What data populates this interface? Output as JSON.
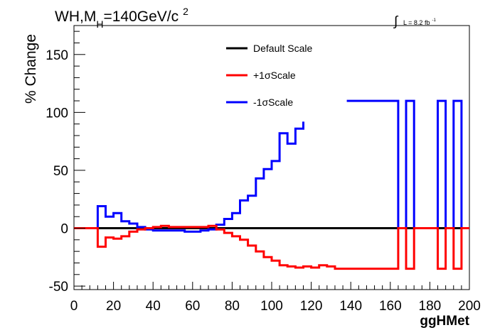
{
  "chart_data": {
    "type": "line",
    "title": {
      "process": "WH,M",
      "subscript": "H",
      "mass": "=140GeV/c",
      "superscript": "2"
    },
    "lumi": {
      "integral_symbol": "∫",
      "label": "L = 8.2 fb",
      "superscript": "-1"
    },
    "xlabel": "ggHMet",
    "ylabel": "% Change",
    "xlim": [
      0,
      200
    ],
    "ylim": [
      -53,
      175
    ],
    "x_ticks": [
      "0",
      "20",
      "40",
      "60",
      "80",
      "100",
      "120",
      "140",
      "160",
      "180",
      "200"
    ],
    "y_ticks": [
      "-50",
      "0",
      "50",
      "100",
      "150"
    ],
    "grid": false,
    "legend_position": "top-center",
    "bin_width": 4,
    "series": [
      {
        "name": "Default Scale",
        "color": "#000000",
        "points": [
          [
            0,
            0
          ],
          [
            200,
            0
          ]
        ]
      },
      {
        "name": "+1σScale",
        "color": "#ff0000",
        "points": [
          [
            0,
            0
          ],
          [
            12,
            0
          ],
          [
            12,
            -16
          ],
          [
            16,
            -16
          ],
          [
            16,
            -8
          ],
          [
            20,
            -8
          ],
          [
            20,
            -9
          ],
          [
            24,
            -9
          ],
          [
            24,
            -7
          ],
          [
            28,
            -7
          ],
          [
            28,
            -3
          ],
          [
            32,
            -3
          ],
          [
            32,
            -1
          ],
          [
            36,
            -1
          ],
          [
            36,
            0
          ],
          [
            40,
            0
          ],
          [
            40,
            1
          ],
          [
            44,
            1
          ],
          [
            44,
            2
          ],
          [
            48,
            2
          ],
          [
            48,
            1
          ],
          [
            52,
            1
          ],
          [
            52,
            1
          ],
          [
            68,
            1
          ],
          [
            68,
            2
          ],
          [
            72,
            2
          ],
          [
            72,
            -1
          ],
          [
            76,
            -1
          ],
          [
            76,
            -4
          ],
          [
            80,
            -4
          ],
          [
            80,
            -7
          ],
          [
            84,
            -7
          ],
          [
            84,
            -10
          ],
          [
            88,
            -10
          ],
          [
            88,
            -15
          ],
          [
            92,
            -15
          ],
          [
            92,
            -20
          ],
          [
            96,
            -20
          ],
          [
            96,
            -25
          ],
          [
            100,
            -25
          ],
          [
            100,
            -28
          ],
          [
            104,
            -28
          ],
          [
            104,
            -32
          ],
          [
            108,
            -32
          ],
          [
            108,
            -33
          ],
          [
            112,
            -33
          ],
          [
            112,
            -34
          ],
          [
            116,
            -34
          ],
          [
            116,
            -33
          ],
          [
            120,
            -33
          ],
          [
            120,
            -34
          ],
          [
            124,
            -34
          ],
          [
            124,
            -32
          ],
          [
            128,
            -32
          ],
          [
            128,
            -33
          ],
          [
            132,
            -33
          ],
          [
            132,
            -35
          ],
          [
            164,
            -35
          ],
          [
            164,
            0
          ],
          [
            168,
            0
          ],
          [
            168,
            -35
          ],
          [
            172,
            -35
          ],
          [
            172,
            0
          ],
          [
            184,
            0
          ],
          [
            184,
            -35
          ],
          [
            188,
            -35
          ],
          [
            188,
            0
          ],
          [
            192,
            0
          ],
          [
            192,
            -35
          ],
          [
            196,
            -35
          ],
          [
            196,
            0
          ],
          [
            200,
            0
          ]
        ]
      },
      {
        "name": "-1σScale",
        "color": "#0000ff",
        "points": [
          [
            0,
            0
          ],
          [
            12,
            0
          ],
          [
            12,
            19
          ],
          [
            16,
            19
          ],
          [
            16,
            10
          ],
          [
            20,
            10
          ],
          [
            20,
            13
          ],
          [
            24,
            13
          ],
          [
            24,
            6
          ],
          [
            28,
            6
          ],
          [
            28,
            4
          ],
          [
            32,
            4
          ],
          [
            32,
            1
          ],
          [
            36,
            1
          ],
          [
            36,
            -1
          ],
          [
            40,
            -1
          ],
          [
            40,
            -2
          ],
          [
            56,
            -2
          ],
          [
            56,
            -3
          ],
          [
            64,
            -3
          ],
          [
            64,
            -2
          ],
          [
            68,
            -2
          ],
          [
            68,
            -1
          ],
          [
            72,
            -1
          ],
          [
            72,
            3
          ],
          [
            76,
            3
          ],
          [
            76,
            8
          ],
          [
            80,
            8
          ],
          [
            80,
            13
          ],
          [
            84,
            13
          ],
          [
            84,
            24
          ],
          [
            88,
            24
          ],
          [
            88,
            28
          ],
          [
            92,
            28
          ],
          [
            92,
            43
          ],
          [
            96,
            43
          ],
          [
            96,
            51
          ],
          [
            100,
            51
          ],
          [
            100,
            58
          ],
          [
            104,
            58
          ],
          [
            104,
            82
          ],
          [
            108,
            82
          ],
          [
            108,
            73
          ],
          [
            112,
            73
          ],
          [
            112,
            86
          ],
          [
            116,
            86
          ],
          [
            116,
            92
          ],
          null,
          [
            138,
            110
          ],
          [
            164,
            110
          ],
          [
            164,
            0
          ],
          [
            168,
            0
          ],
          [
            168,
            110
          ],
          [
            172,
            110
          ],
          [
            172,
            0
          ],
          [
            184,
            0
          ],
          [
            184,
            110
          ],
          [
            188,
            110
          ],
          [
            188,
            0
          ],
          [
            192,
            0
          ],
          [
            192,
            110
          ],
          [
            196,
            110
          ],
          [
            196,
            0
          ],
          [
            200,
            0
          ]
        ]
      }
    ]
  }
}
